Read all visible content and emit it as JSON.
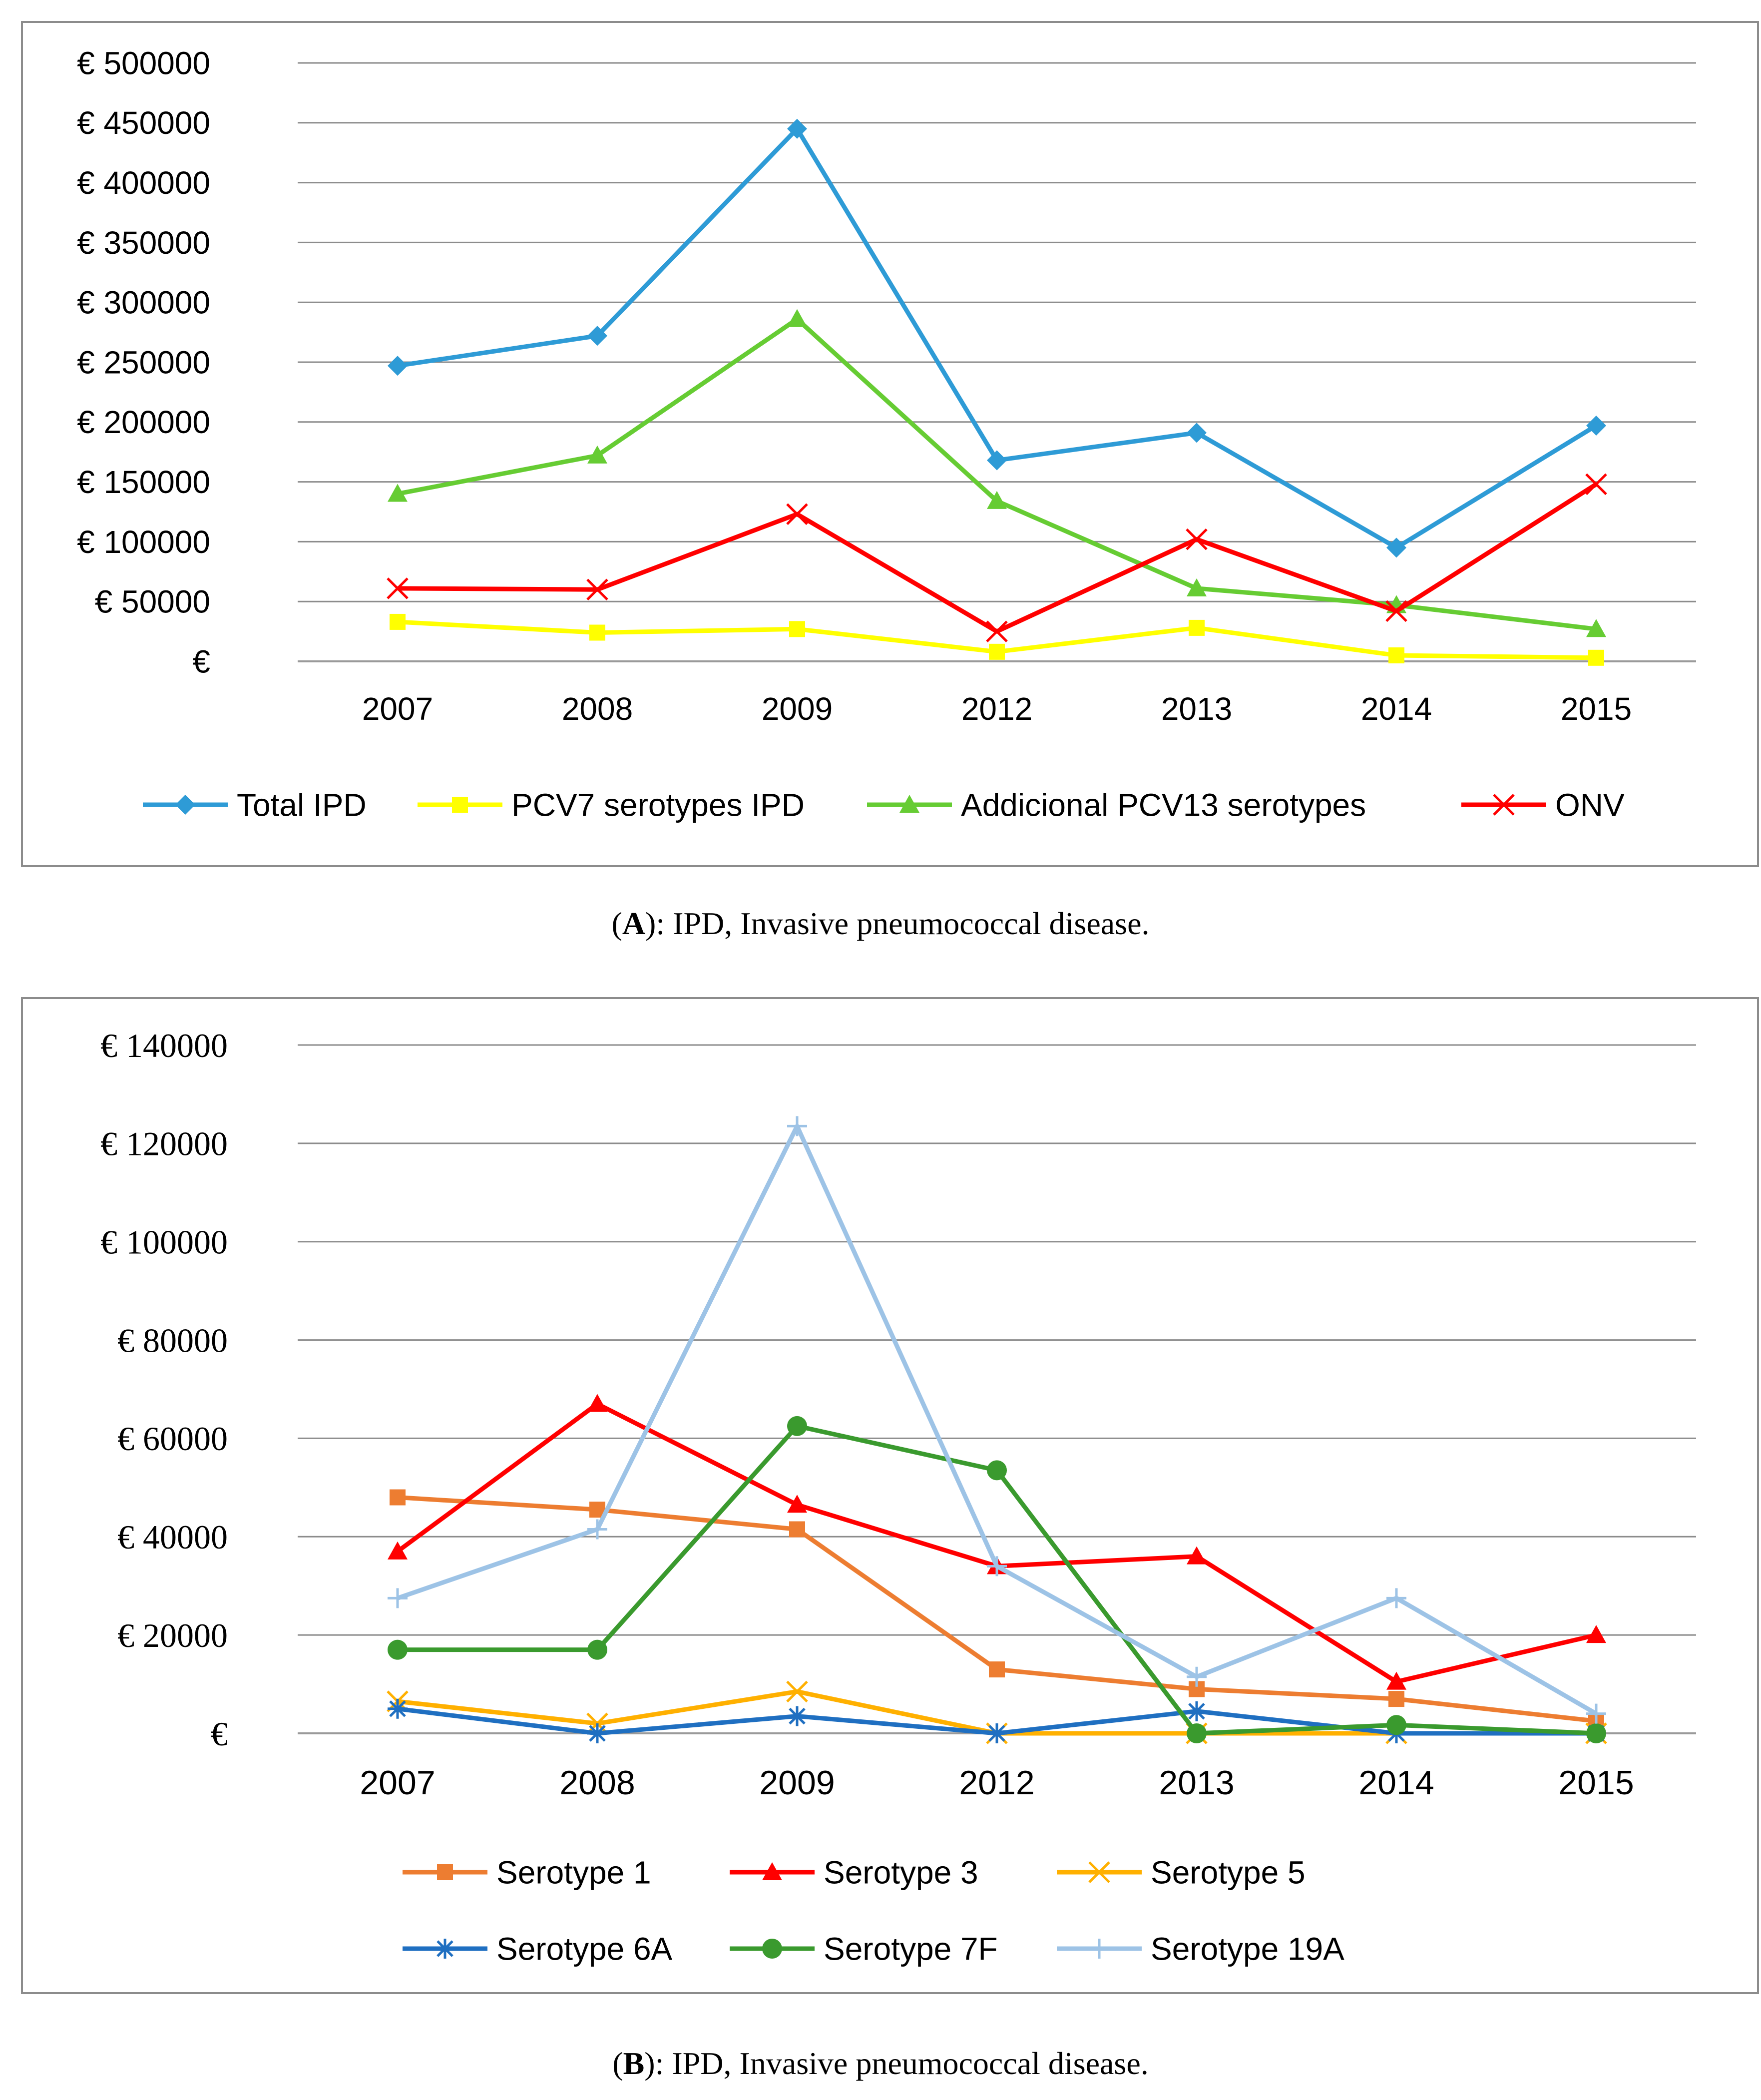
{
  "chart_data": [
    {
      "type": "line",
      "panel": "A",
      "categories": [
        "2007",
        "2008",
        "2009",
        "2012",
        "2013",
        "2014",
        "2015"
      ],
      "ylim": [
        0,
        500000
      ],
      "yticks": [
        0,
        50000,
        100000,
        150000,
        200000,
        250000,
        300000,
        350000,
        400000,
        450000,
        500000
      ],
      "ytick_labels": [
        "€",
        "€ 50000",
        "€ 100000",
        "€ 150000",
        "€ 200000",
        "€ 250000",
        "€ 300000",
        "€ 350000",
        "€ 400000",
        "€ 450000",
        "€ 500000"
      ],
      "legend_position": "bottom",
      "grid": true,
      "series": [
        {
          "name": "Total IPD",
          "color": "#2E9BD6",
          "marker": "diamond",
          "values": [
            247000,
            272000,
            445000,
            168000,
            191000,
            95000,
            197000
          ]
        },
        {
          "name": "PCV7 serotypes IPD",
          "color": "#FFFF00",
          "marker": "square",
          "values": [
            33000,
            24000,
            27000,
            8000,
            28000,
            5000,
            3000
          ]
        },
        {
          "name": "Addicional PCV13 serotypes",
          "color": "#66CC33",
          "marker": "triangle",
          "values": [
            140000,
            172000,
            286000,
            134000,
            61000,
            47000,
            27000
          ]
        },
        {
          "name": "ONV",
          "color": "#FF0000",
          "marker": "x",
          "values": [
            61000,
            60000,
            123000,
            25000,
            102000,
            42000,
            148000
          ]
        }
      ],
      "caption_letter": "A",
      "caption_text": "): IPD, Invasive pneumococcal disease."
    },
    {
      "type": "line",
      "panel": "B",
      "categories": [
        "2007",
        "2008",
        "2009",
        "2012",
        "2013",
        "2014",
        "2015"
      ],
      "ylim": [
        0,
        140000
      ],
      "yticks": [
        0,
        20000,
        40000,
        60000,
        80000,
        100000,
        120000,
        140000
      ],
      "ytick_labels": [
        "€",
        "€ 20000",
        "€ 40000",
        "€ 60000",
        "€ 80000",
        "€ 100000",
        "€ 120000",
        "€ 140000"
      ],
      "legend_position": "bottom",
      "grid": true,
      "series": [
        {
          "name": "Serotype 1",
          "color": "#ED7D31",
          "marker": "square",
          "values": [
            48000,
            45500,
            41500,
            13000,
            9000,
            7000,
            2500
          ]
        },
        {
          "name": "Serotype 3",
          "color": "#FF0000",
          "marker": "triangle",
          "values": [
            37000,
            67000,
            46500,
            34000,
            36000,
            10500,
            20000
          ]
        },
        {
          "name": "Serotype 5",
          "color": "#FFB000",
          "marker": "x",
          "values": [
            6500,
            2000,
            8500,
            0,
            0,
            0,
            0
          ]
        },
        {
          "name": "Serotype 6A",
          "color": "#1F6FC1",
          "marker": "star",
          "values": [
            5000,
            0,
            3500,
            0,
            4500,
            0,
            0
          ]
        },
        {
          "name": "Serotype 7F",
          "color": "#3A9A2E",
          "marker": "circle",
          "values": [
            17000,
            17000,
            62500,
            53500,
            0,
            1700,
            0
          ]
        },
        {
          "name": "Serotype 19A",
          "color": "#9DC3E6",
          "marker": "plus",
          "values": [
            27500,
            41500,
            123500,
            34000,
            11500,
            27500,
            4000
          ]
        }
      ],
      "caption_letter": "B",
      "caption_text": "): IPD, Invasive pneumococcal disease."
    }
  ]
}
